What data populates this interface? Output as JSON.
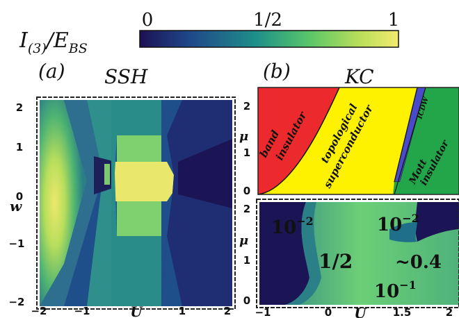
{
  "colorbar": {
    "label_main": "I",
    "label_sub": "(3)",
    "label_slash": "/E",
    "label_sub2": "BS",
    "ticks": [
      "0",
      "1/2",
      "1"
    ],
    "colors": [
      "#1c1154",
      "#1f4a8a",
      "#1f8f8a",
      "#57c56a",
      "#b9df5a",
      "#f2ea6e"
    ]
  },
  "panel_a": {
    "letter": "(a)",
    "title": "SSH",
    "xlabel": "U",
    "ylabel": "w",
    "xticks": [
      "−2",
      "−1",
      "0",
      "1",
      "2"
    ],
    "yticks": [
      "2",
      "1",
      "0",
      "−1",
      "−2"
    ]
  },
  "panel_b": {
    "letter": "(b)",
    "title": "KC",
    "phase": {
      "ylabel": "μ",
      "yticks": [
        "2",
        "1",
        "0"
      ],
      "regions": [
        "band",
        "insulator",
        "topological",
        "superconductor",
        "ICDW",
        "Mott",
        "insulator"
      ],
      "colors": {
        "band": "#ec2a2d",
        "topo": "#fff200",
        "icdw": "#4a4bc8",
        "mott": "#23a64a"
      }
    },
    "map": {
      "ylabel": "μ",
      "xlabel": "U",
      "xticks": [
        "−1",
        "0",
        "1.5",
        "2"
      ],
      "yticks": [
        "2",
        "1",
        "0"
      ],
      "annotations": [
        "10",
        "−2",
        "10",
        "−2",
        "1/2",
        "~0.4",
        "10",
        "−1"
      ]
    }
  }
}
